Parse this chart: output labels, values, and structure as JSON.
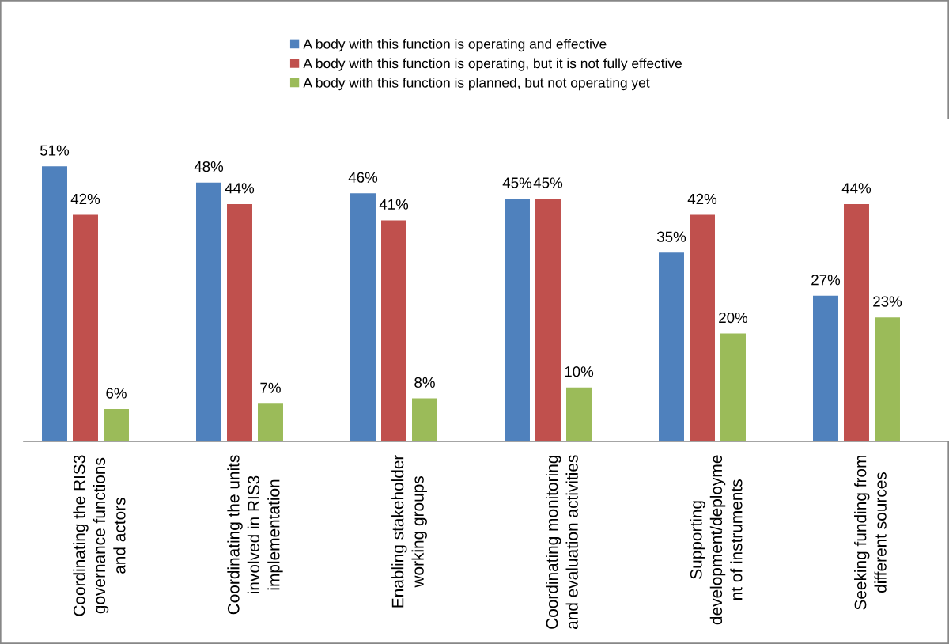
{
  "chart_data": {
    "type": "bar",
    "categories": [
      "Coordinating the RIS3\ngovernance functions\nand actors",
      "Coordinating the units\ninvolved in RIS3\nimplementation",
      "Enabling stakeholder\nworking groups",
      "Coordinating monitoring\nand evaluation activities",
      "Supporting\ndevelopment/deployme\nnt of instruments",
      "Seeking funding from\ndifferent sources"
    ],
    "series": [
      {
        "name": "A body with this function is operating and effective",
        "color": "#4f81bd",
        "values": [
          51,
          48,
          46,
          45,
          35,
          27
        ],
        "value_labels": [
          "51%",
          "48%",
          "46%",
          "45%",
          "35%",
          "27%"
        ]
      },
      {
        "name": "A body with this function is operating, but it is not fully effective",
        "color": "#c0504d",
        "values": [
          42,
          44,
          41,
          45,
          42,
          44
        ],
        "value_labels": [
          "42%",
          "44%",
          "41%",
          "45%",
          "42%",
          "44%"
        ]
      },
      {
        "name": "A body with this function is planned, but not operating yet",
        "color": "#9bbb59",
        "values": [
          6,
          7,
          8,
          10,
          20,
          23
        ],
        "value_labels": [
          "6%",
          "7%",
          "8%",
          "10%",
          "20%",
          "23%"
        ]
      }
    ],
    "legend": "top"
  }
}
